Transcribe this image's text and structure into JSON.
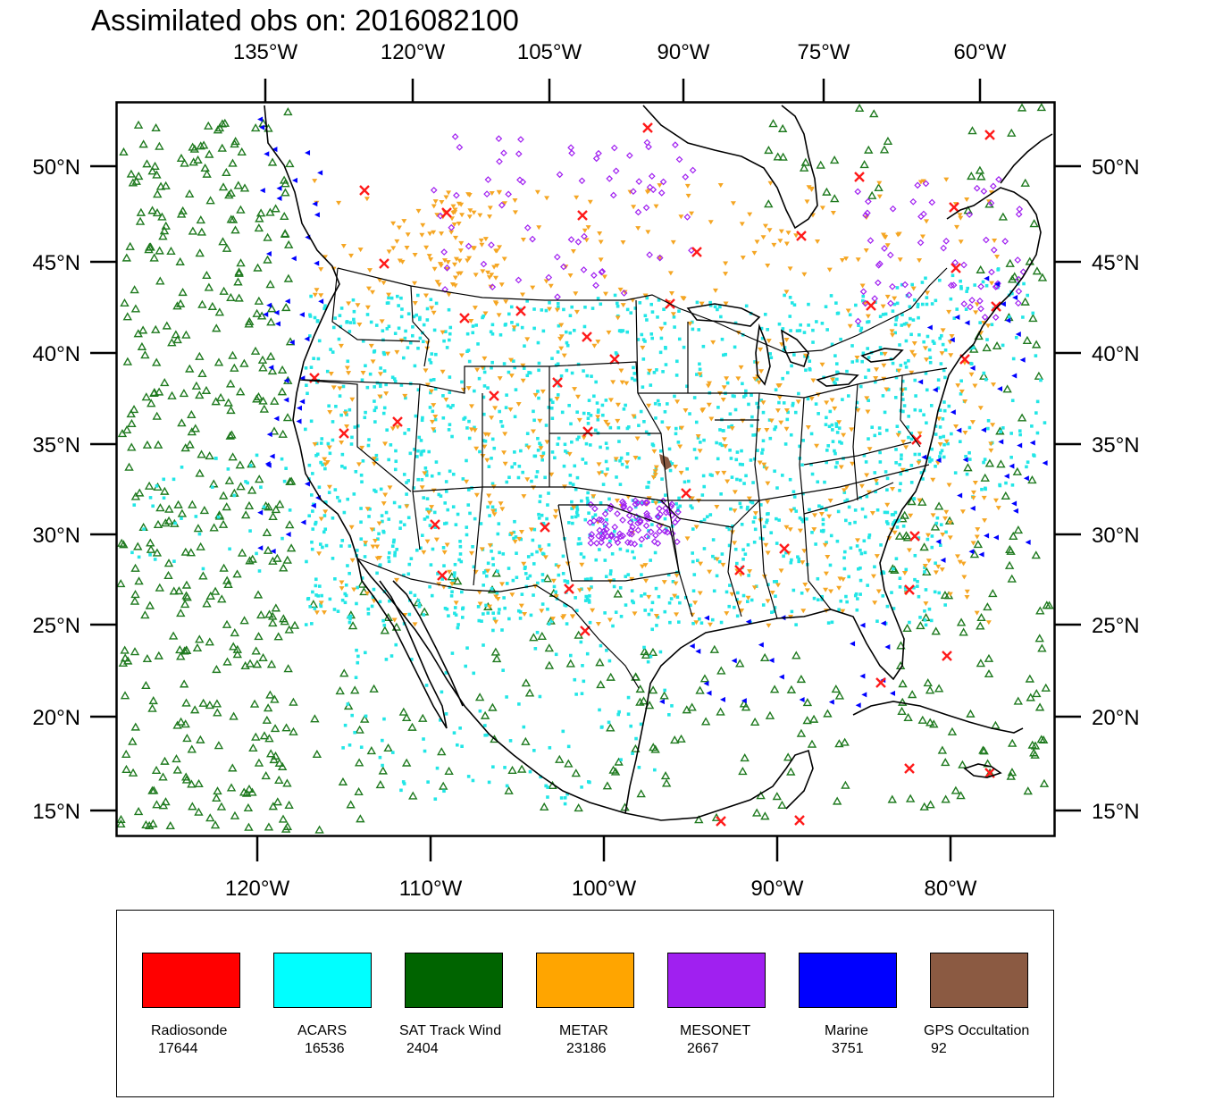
{
  "title": "Assimilated obs on: 2016082100",
  "axes": {
    "top_lon_labels": [
      "135°W",
      "120°W",
      "105°W",
      "90°W",
      "75°W",
      "60°W"
    ],
    "bottom_lon_labels": [
      "120°W",
      "110°W",
      "100°W",
      "90°W",
      "80°W"
    ],
    "lat_labels": [
      "50°N",
      "45°N",
      "40°N",
      "35°N",
      "30°N",
      "25°N",
      "20°N",
      "15°N"
    ]
  },
  "legend": [
    {
      "name": "Radiosonde",
      "count": "17644",
      "color": "#ff0000"
    },
    {
      "name": "ACARS",
      "count": "16536",
      "color": "#00ffff"
    },
    {
      "name": "SAT Track Wind",
      "count": "2404",
      "color": "#006400"
    },
    {
      "name": "METAR",
      "count": "23186",
      "color": "#ffa500"
    },
    {
      "name": "MESONET",
      "count": "2667",
      "color": "#a020f0"
    },
    {
      "name": "Marine",
      "count": "3751",
      "color": "#0000ff"
    },
    {
      "name": "GPS Occultation",
      "count": "92",
      "color": "#8b5a42"
    }
  ],
  "colors": {
    "acars": "#22e6e6",
    "sat_wind": "#1f7a1f",
    "metar": "#f5a623",
    "mesonet": "#a020f0",
    "marine": "#0000ff",
    "radiosonde": "#ff1a1a",
    "gps": "#8b5a42",
    "coast": "#000000"
  }
}
